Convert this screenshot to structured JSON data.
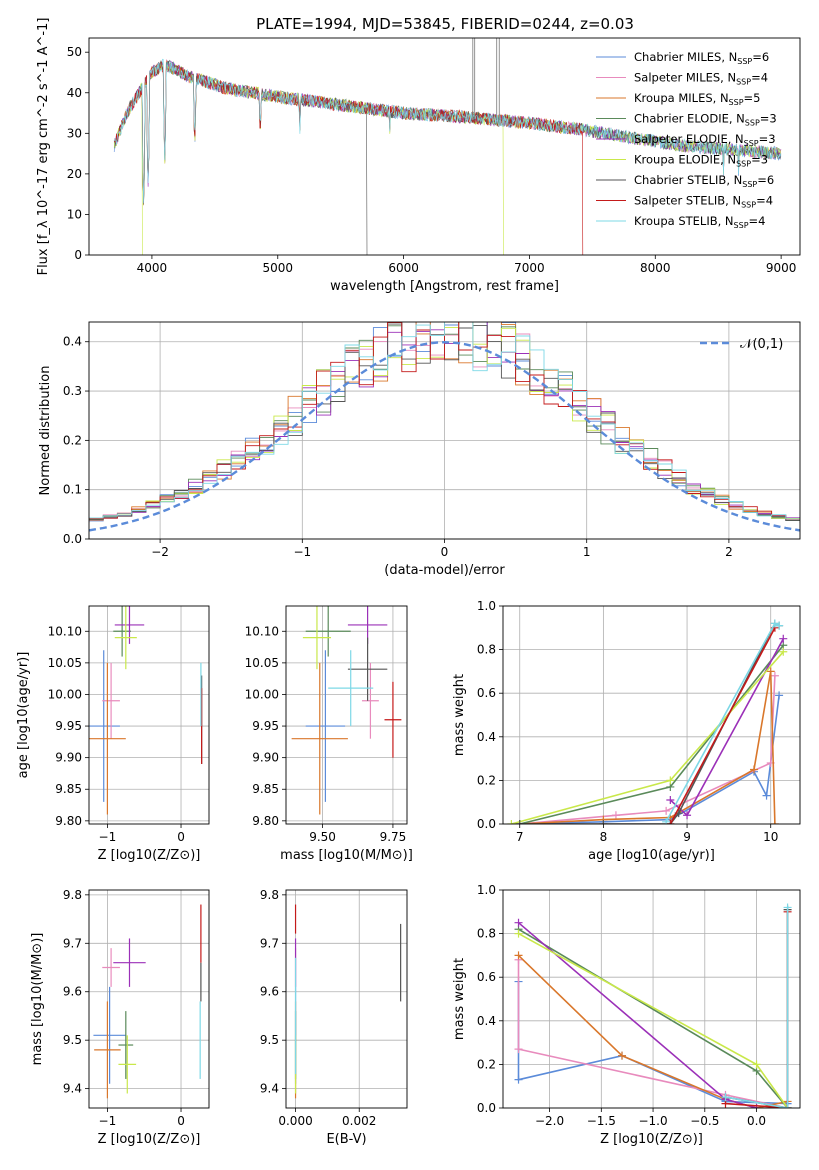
{
  "figure": {
    "title": "PLATE=1994, MJD=53845, FIBERID=0244, z=0.03",
    "series_labels": [
      {
        "name": "Chabrier MILES",
        "n": "6",
        "color": "#5b8bd9"
      },
      {
        "name": "Salpeter MILES",
        "n": "4",
        "color": "#e88bbd"
      },
      {
        "name": "Kroupa MILES",
        "n": "5",
        "color": "#d9772b"
      },
      {
        "name": "Chabrier ELODIE",
        "n": "3",
        "color": "#5a8a5a"
      },
      {
        "name": "Salpeter ELODIE",
        "n": "3",
        "color": "#9b30b8"
      },
      {
        "name": "Kroupa ELODIE",
        "n": "3",
        "color": "#c9e84a"
      },
      {
        "name": "Chabrier STELIB",
        "n": "6",
        "color": "#555555"
      },
      {
        "name": "Salpeter STELIB",
        "n": "4",
        "color": "#c41a1a"
      },
      {
        "name": "Kroupa STELIB",
        "n": "4",
        "color": "#7dd8e6"
      }
    ]
  },
  "chart_data": [
    {
      "id": "spectrum",
      "type": "line",
      "xlabel": "wavelength [Angstrom, rest frame]",
      "ylabel": "Flux [f_λ 10^-17 erg cm^-2 s^-1 A^-1]",
      "xlim": [
        3500,
        9150
      ],
      "ylim": [
        0,
        53.5
      ],
      "xticks": [
        4000,
        5000,
        6000,
        7000,
        8000,
        9000
      ],
      "yticks": [
        0,
        10,
        20,
        30,
        40,
        50
      ],
      "grid": false,
      "legend": "top-right",
      "continuum": {
        "x": [
          3700,
          3800,
          3900,
          4000,
          4100,
          4300,
          4600,
          5000,
          5500,
          6000,
          6500,
          7000,
          7400,
          7800,
          8200,
          8600,
          9000
        ],
        "y": [
          27,
          35,
          40,
          45,
          47,
          44,
          41,
          39,
          37,
          35,
          34,
          32.5,
          31,
          29,
          27,
          26,
          25
        ]
      },
      "absorption_dips": [
        {
          "x": 3934,
          "y": 13
        },
        {
          "x": 3969,
          "y": 17
        },
        {
          "x": 4102,
          "y": 24
        },
        {
          "x": 4340,
          "y": 27
        },
        {
          "x": 4861,
          "y": 29
        },
        {
          "x": 5175,
          "y": 30
        },
        {
          "x": 5890,
          "y": 31
        },
        {
          "x": 8542,
          "y": 20
        },
        {
          "x": 8662,
          "y": 21
        }
      ],
      "spikes": [
        {
          "x": 6550,
          "y": 53.5
        },
        {
          "x": 6565,
          "y": 53.5
        },
        {
          "x": 6740,
          "y": 53.5
        },
        {
          "x": 6760,
          "y": 53.5
        }
      ],
      "drops": [
        {
          "x": 3920,
          "y": 0,
          "series": 5
        },
        {
          "x": 5705,
          "y": 0,
          "series": 6
        },
        {
          "x": 6790,
          "y": 0,
          "series": 5
        },
        {
          "x": 7420,
          "y": 0,
          "series": 7
        }
      ],
      "series_end_x": [
        9000,
        9000,
        7420,
        9000,
        9000,
        9000,
        9000,
        7420,
        9000
      ]
    },
    {
      "id": "residual-histogram",
      "type": "line",
      "xlabel": "(data-model)/error",
      "ylabel": "Normed distribution",
      "xlim": [
        -2.5,
        2.5
      ],
      "ylim": [
        0,
        0.44
      ],
      "xticks": [
        -2,
        -1,
        0,
        1,
        2
      ],
      "yticks": [
        0.0,
        0.1,
        0.2,
        0.3,
        0.4
      ],
      "grid": true,
      "legend": "top-right",
      "reference_label": "𝒩(0,1)",
      "bin_width": 0.1
    },
    {
      "id": "age-vs-metallicity",
      "type": "scatter",
      "xlabel": "Z [log10(Z/Z⊙)]",
      "ylabel": "age  [log10(age/yr)]",
      "xlim": [
        -1.25,
        0.38
      ],
      "ylim": [
        9.795,
        10.14
      ],
      "xticks": [
        -1,
        0
      ],
      "yticks": [
        9.8,
        9.85,
        9.9,
        9.95,
        10.0,
        10.05,
        10.1
      ],
      "grid": true,
      "points": [
        {
          "x": -1.05,
          "y": 9.95,
          "xerr": 0.22,
          "yerr": 0.12,
          "series": 0
        },
        {
          "x": -0.95,
          "y": 9.99,
          "xerr": 0.12,
          "yerr": 0.06,
          "series": 1
        },
        {
          "x": -1.0,
          "y": 9.93,
          "xerr": 0.25,
          "yerr": 0.12,
          "series": 2
        },
        {
          "x": -0.8,
          "y": 10.1,
          "xerr": 0.12,
          "yerr": 0.04,
          "series": 3
        },
        {
          "x": -0.7,
          "y": 10.11,
          "xerr": 0.2,
          "yerr": 0.03,
          "series": 4
        },
        {
          "x": -0.75,
          "y": 10.09,
          "xerr": 0.15,
          "yerr": 0.05,
          "series": 5
        },
        {
          "x": 0.28,
          "y": 9.96,
          "xerr": 0.0,
          "yerr": 0.07,
          "series": 6
        },
        {
          "x": 0.28,
          "y": 9.95,
          "xerr": 0.0,
          "yerr": 0.06,
          "series": 7
        },
        {
          "x": 0.27,
          "y": 10.0,
          "xerr": 0.0,
          "yerr": 0.05,
          "series": 8
        }
      ]
    },
    {
      "id": "age-vs-mass",
      "type": "scatter",
      "xlabel": "mass [log10(M/M⊙)]",
      "ylabel": "",
      "xlim": [
        9.37,
        9.8
      ],
      "ylim": [
        9.795,
        10.14
      ],
      "xticks": [
        9.5,
        9.75
      ],
      "yticks": [
        9.8,
        9.85,
        9.9,
        9.95,
        10.0,
        10.05,
        10.1
      ],
      "grid": true,
      "points": [
        {
          "x": 9.51,
          "y": 9.95,
          "xerr": 0.07,
          "yerr": 0.12,
          "series": 0
        },
        {
          "x": 9.67,
          "y": 9.99,
          "xerr": 0.03,
          "yerr": 0.06,
          "series": 1
        },
        {
          "x": 9.49,
          "y": 9.93,
          "xerr": 0.1,
          "yerr": 0.12,
          "series": 2
        },
        {
          "x": 9.52,
          "y": 10.1,
          "xerr": 0.08,
          "yerr": 0.04,
          "series": 3
        },
        {
          "x": 9.66,
          "y": 10.11,
          "xerr": 0.07,
          "yerr": 0.03,
          "series": 4
        },
        {
          "x": 9.48,
          "y": 10.09,
          "xerr": 0.05,
          "yerr": 0.05,
          "series": 5
        },
        {
          "x": 9.66,
          "y": 10.04,
          "xerr": 0.07,
          "yerr": 0.05,
          "series": 6
        },
        {
          "x": 9.75,
          "y": 9.96,
          "xerr": 0.03,
          "yerr": 0.06,
          "series": 7
        },
        {
          "x": 9.6,
          "y": 10.01,
          "xerr": 0.08,
          "yerr": 0.06,
          "series": 8
        }
      ]
    },
    {
      "id": "mass-weight-vs-age",
      "type": "line",
      "xlabel": "age  [log10(age/yr)]",
      "ylabel": "mass weight",
      "xlim": [
        6.8,
        10.35
      ],
      "ylim": [
        0,
        1.0
      ],
      "xticks": [
        7,
        8,
        9,
        10
      ],
      "yticks": [
        0.0,
        0.2,
        0.4,
        0.6,
        0.8,
        1.0
      ],
      "grid": true,
      "series": [
        {
          "x": [
            7.0,
            8.0,
            8.8,
            9.8,
            9.95,
            10.1
          ],
          "y": [
            0.0,
            0.01,
            0.02,
            0.24,
            0.13,
            0.59
          ],
          "series": 0
        },
        {
          "x": [
            7.0,
            8.15,
            8.75,
            10.0,
            10.05
          ],
          "y": [
            0.0,
            0.04,
            0.06,
            0.28,
            0.68
          ],
          "series": 1
        },
        {
          "x": [
            7.0,
            8.0,
            8.8,
            9.8,
            10.0,
            10.05
          ],
          "y": [
            0.0,
            0.02,
            0.03,
            0.25,
            0.7,
            0.0
          ],
          "series": 2
        },
        {
          "x": [
            7.0,
            8.8,
            10.15
          ],
          "y": [
            0.0,
            0.17,
            0.82
          ],
          "series": 3
        },
        {
          "x": [
            8.8,
            9.0,
            10.15
          ],
          "y": [
            0.11,
            0.04,
            0.85
          ],
          "series": 4
        },
        {
          "x": [
            6.9,
            8.8,
            10.15
          ],
          "y": [
            0.0,
            0.2,
            0.79
          ],
          "series": 5
        },
        {
          "x": [
            7.0,
            8.0,
            8.8,
            8.9,
            10.05,
            10.1
          ],
          "y": [
            0.0,
            0.0,
            0.0,
            0.05,
            0.92,
            0.91
          ],
          "series": 6
        },
        {
          "x": [
            8.8,
            10.05
          ],
          "y": [
            0.0,
            0.9
          ],
          "series": 7
        },
        {
          "x": [
            8.75,
            10.05,
            10.1
          ],
          "y": [
            0.01,
            0.92,
            0.91
          ],
          "series": 8
        }
      ]
    },
    {
      "id": "mass-vs-metallicity",
      "type": "scatter",
      "xlabel": "Z [log10(Z/Z⊙)]",
      "ylabel": "mass [log10(M/M⊙)]",
      "xlim": [
        -1.25,
        0.38
      ],
      "ylim": [
        9.36,
        9.81
      ],
      "xticks": [
        -1,
        0
      ],
      "yticks": [
        9.4,
        9.5,
        9.6,
        9.7,
        9.8
      ],
      "grid": true,
      "points": [
        {
          "x": -0.97,
          "y": 9.51,
          "xerr": 0.22,
          "yerr": 0.1,
          "series": 0
        },
        {
          "x": -0.95,
          "y": 9.65,
          "xerr": 0.12,
          "yerr": 0.04,
          "series": 1
        },
        {
          "x": -1.0,
          "y": 9.48,
          "xerr": 0.18,
          "yerr": 0.1,
          "series": 2
        },
        {
          "x": -0.75,
          "y": 9.49,
          "xerr": 0.1,
          "yerr": 0.07,
          "series": 3
        },
        {
          "x": -0.7,
          "y": 9.66,
          "xerr": 0.22,
          "yerr": 0.05,
          "series": 4
        },
        {
          "x": -0.73,
          "y": 9.45,
          "xerr": 0.12,
          "yerr": 0.06,
          "series": 5
        },
        {
          "x": 0.27,
          "y": 9.62,
          "xerr": 0.0,
          "yerr": 0.04,
          "series": 6
        },
        {
          "x": 0.27,
          "y": 9.72,
          "xerr": 0.0,
          "yerr": 0.06,
          "series": 7
        },
        {
          "x": 0.26,
          "y": 9.5,
          "xerr": 0.0,
          "yerr": 0.08,
          "series": 8
        }
      ]
    },
    {
      "id": "mass-vs-extinction",
      "type": "scatter",
      "xlabel": "E(B-V)",
      "ylabel": "",
      "xlim": [
        -0.0003,
        0.0035
      ],
      "ylim": [
        9.36,
        9.81
      ],
      "xticks": [
        0.0,
        0.002
      ],
      "xticklabels": [
        "0.000",
        "0.002"
      ],
      "yticks": [
        9.4,
        9.5,
        9.6,
        9.7,
        9.8
      ],
      "grid": true,
      "points": [
        {
          "x": 0.0,
          "y": 9.51,
          "xerr": 0,
          "yerr": 0.1,
          "series": 0
        },
        {
          "x": 0.0,
          "y": 9.65,
          "xerr": 0,
          "yerr": 0.04,
          "series": 1
        },
        {
          "x": 0.0,
          "y": 9.48,
          "xerr": 0,
          "yerr": 0.1,
          "series": 2
        },
        {
          "x": 0.0,
          "y": 9.49,
          "xerr": 0,
          "yerr": 0.07,
          "series": 3
        },
        {
          "x": 0.0,
          "y": 9.66,
          "xerr": 0,
          "yerr": 0.05,
          "series": 4
        },
        {
          "x": 0.0,
          "y": 9.45,
          "xerr": 0,
          "yerr": 0.06,
          "series": 5
        },
        {
          "x": 0.0033,
          "y": 9.66,
          "xerr": 0,
          "yerr": 0.08,
          "series": 6
        },
        {
          "x": 0.0,
          "y": 9.75,
          "xerr": 0,
          "yerr": 0.03,
          "series": 7
        },
        {
          "x": 0.0,
          "y": 9.55,
          "xerr": 0,
          "yerr": 0.12,
          "series": 8
        }
      ]
    },
    {
      "id": "mass-weight-vs-metallicity",
      "type": "line",
      "xlabel": "Z [log10(Z/Z⊙)]",
      "ylabel": "mass weight",
      "xlim": [
        -2.45,
        0.42
      ],
      "ylim": [
        0,
        1.0
      ],
      "xticks": [
        -2.0,
        -1.5,
        -1.0,
        -0.5,
        0.0
      ],
      "xticklabels": [
        "−2.0",
        "−1.5",
        "−1.0",
        "−0.5",
        "0.0"
      ],
      "yticks": [
        0.0,
        0.2,
        0.4,
        0.6,
        0.8,
        1.0
      ],
      "grid": true,
      "series": [
        {
          "x": [
            -2.3,
            -2.3,
            -1.3,
            -0.3,
            0.3
          ],
          "y": [
            0.58,
            0.13,
            0.24,
            0.03,
            0.02
          ],
          "series": 0
        },
        {
          "x": [
            -2.3,
            -2.3,
            -0.3,
            0.3
          ],
          "y": [
            0.68,
            0.27,
            0.06,
            0.0
          ],
          "series": 1
        },
        {
          "x": [
            -2.3,
            -1.3,
            -0.3,
            0.0,
            0.3
          ],
          "y": [
            0.7,
            0.24,
            0.04,
            0.0,
            0.03
          ],
          "series": 2
        },
        {
          "x": [
            -2.3,
            0.0,
            0.3
          ],
          "y": [
            0.82,
            0.17,
            0.0
          ],
          "series": 3
        },
        {
          "x": [
            -2.3,
            -0.3,
            0.0
          ],
          "y": [
            0.85,
            0.04,
            0.0
          ],
          "series": 4
        },
        {
          "x": [
            -2.3,
            0.0,
            0.3
          ],
          "y": [
            0.8,
            0.2,
            0.0
          ],
          "series": 5
        },
        {
          "x": [
            -0.3,
            0.3,
            0.3
          ],
          "y": [
            0.05,
            0.0,
            0.91
          ],
          "series": 6
        },
        {
          "x": [
            -0.3,
            0.3,
            0.3
          ],
          "y": [
            0.02,
            0.0,
            0.9
          ],
          "series": 7
        },
        {
          "x": [
            -0.3,
            0.3,
            0.3
          ],
          "y": [
            0.05,
            0.0,
            0.92
          ],
          "series": 8
        }
      ]
    }
  ]
}
